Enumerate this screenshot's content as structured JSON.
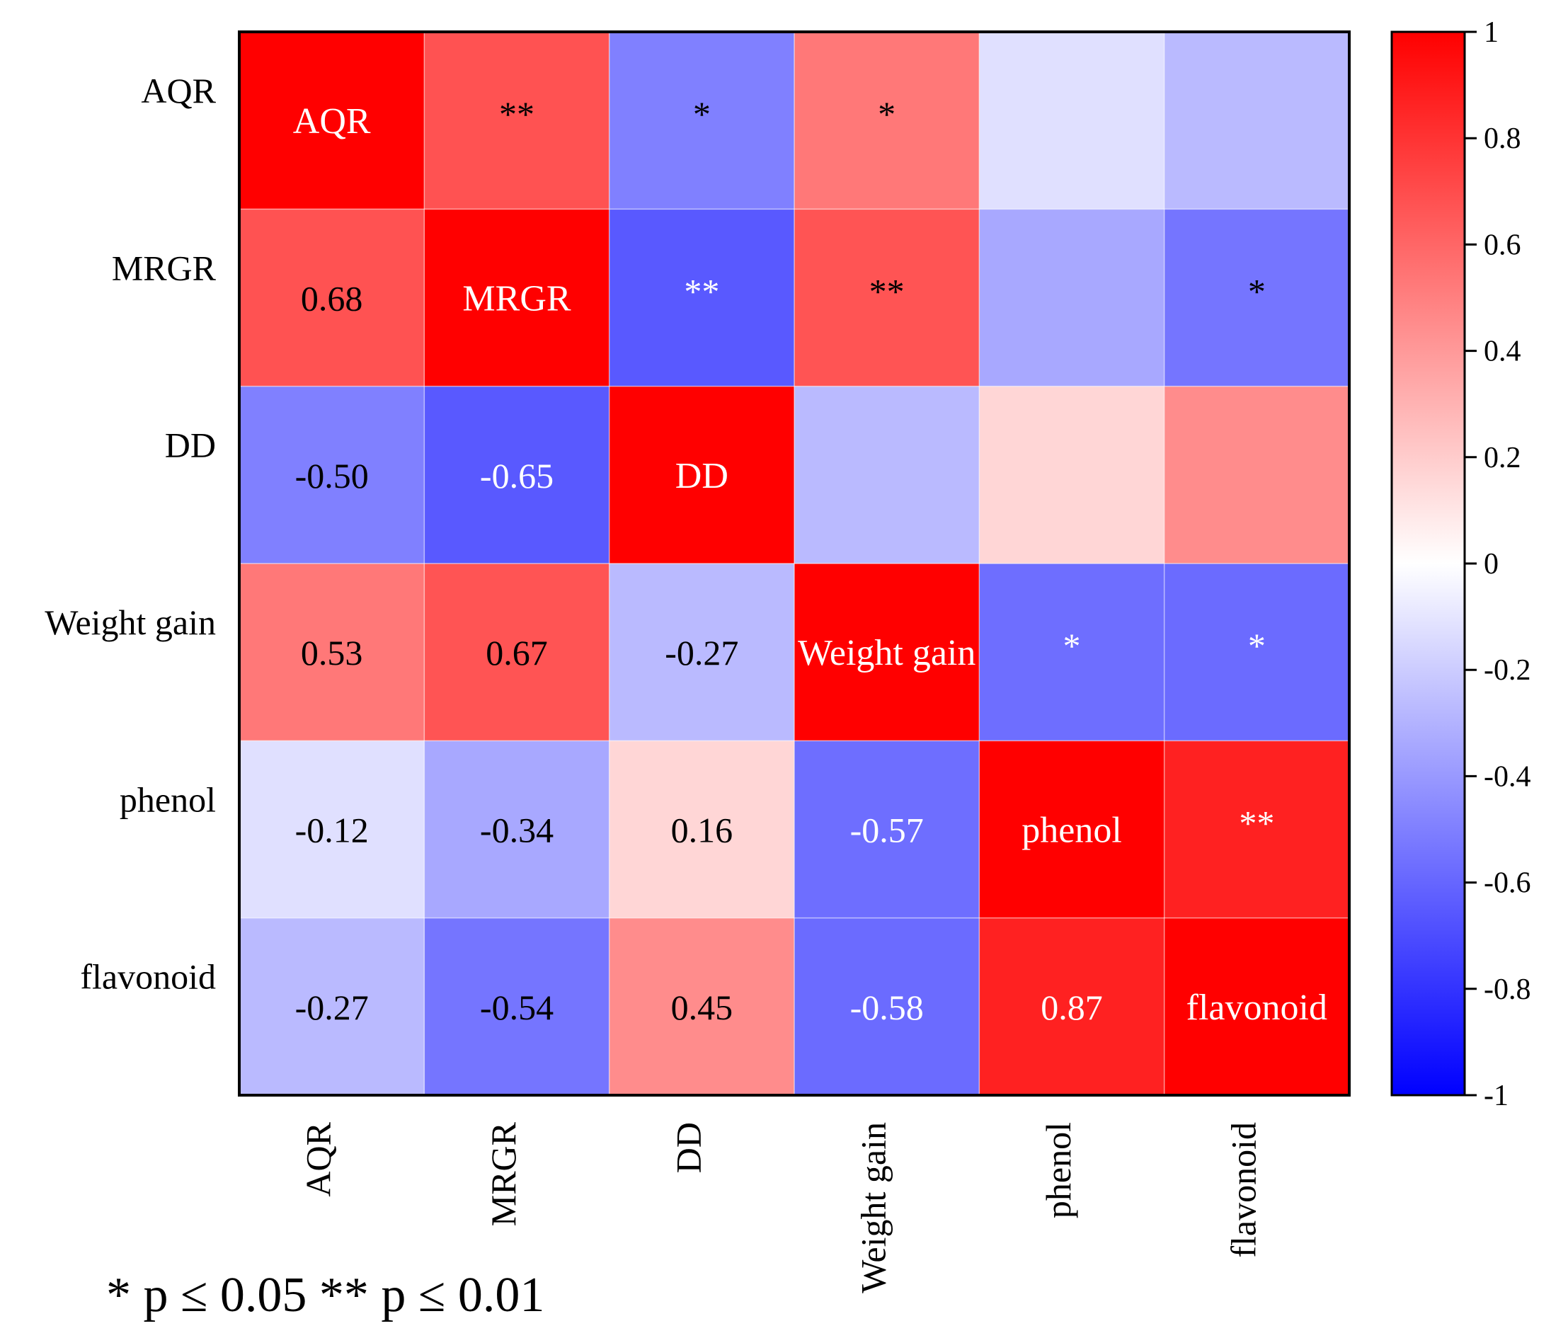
{
  "chart_data": {
    "type": "heatmap",
    "variables": [
      "AQR",
      "MRGR",
      "DD",
      "Weight gain",
      "phenol",
      "flavonoid"
    ],
    "values": [
      [
        1.0,
        0.68,
        -0.5,
        0.53,
        -0.12,
        -0.27
      ],
      [
        0.68,
        1.0,
        -0.65,
        0.67,
        -0.34,
        -0.54
      ],
      [
        -0.5,
        -0.65,
        1.0,
        -0.27,
        0.16,
        0.45
      ],
      [
        0.53,
        0.67,
        -0.27,
        1.0,
        -0.57,
        -0.58
      ],
      [
        -0.12,
        -0.34,
        0.16,
        -0.57,
        1.0,
        0.87
      ],
      [
        -0.27,
        -0.54,
        0.45,
        -0.58,
        0.87,
        1.0
      ]
    ],
    "value_labels": [
      [
        "AQR",
        "**",
        "*",
        "*",
        "",
        ""
      ],
      [
        "0.68",
        "MRGR",
        "**",
        "**",
        "",
        "*"
      ],
      [
        "-0.50",
        "-0.65",
        "DD",
        "",
        "",
        ""
      ],
      [
        "0.53",
        "0.67",
        "-0.27",
        "Weight gain",
        "*",
        "*"
      ],
      [
        "-0.12",
        "-0.34",
        "0.16",
        "-0.57",
        "phenol",
        "**"
      ],
      [
        "-0.27",
        "-0.54",
        "0.45",
        "-0.58",
        "0.87",
        "flavonoid"
      ]
    ],
    "colorbar": {
      "range": [
        -1,
        1
      ],
      "ticks": [
        "1",
        "0.8",
        "0.6",
        "0.4",
        "0.2",
        "0",
        "-0.2",
        "-0.4",
        "-0.6",
        "-0.8",
        "-1"
      ],
      "colors": {
        "low": "#0000ff",
        "mid": "#ffffff",
        "high": "#ff0000"
      }
    },
    "footnote": "* p ≤ 0.05   ** p ≤ 0.01"
  }
}
